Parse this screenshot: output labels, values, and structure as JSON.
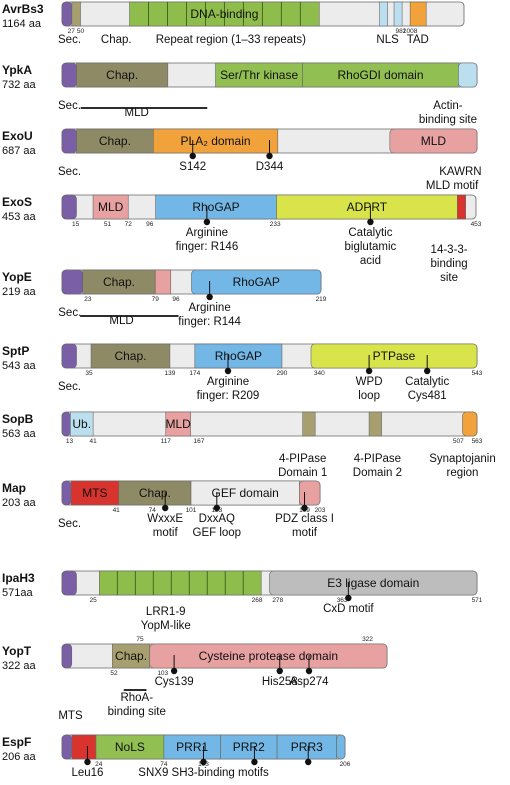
{
  "colors": {
    "body": "#ececec",
    "sec": "#7a5fa6",
    "chap": "#8e8a65",
    "green": "#8fbd4c",
    "stripe": "#7aa83a",
    "kinase": "#92bf51",
    "blue": "#72b7e6",
    "orange": "#f1a23a",
    "pink": "#e7a1a0",
    "yellow": "#d8e44a",
    "lightblue": "#bcdfef",
    "red": "#d8342d",
    "khaki": "#a79f6f",
    "grey": "#bdbdbd"
  },
  "proteins": [
    {
      "name": "AvrBs3",
      "length": "1164 aa",
      "domains": [
        {
          "label": "",
          "color": "sec",
          "s": 0,
          "e": 0.0245
        },
        {
          "label": "",
          "color": "khaki",
          "s": 0.0245,
          "e": 0.046
        },
        {
          "label": "DNA-binding",
          "color": "green",
          "s": 0.168,
          "e": 0.64,
          "stripes": 9
        },
        {
          "label": "",
          "color": "lightblue",
          "s": 0.79,
          "e": 0.81
        },
        {
          "label": "",
          "color": "lightblue",
          "s": 0.826,
          "e": 0.846
        },
        {
          "label": "",
          "color": "orange",
          "s": 0.866,
          "e": 0.906
        }
      ],
      "numbers": [
        {
          "t": "27",
          "p": 0.023
        },
        {
          "t": "50",
          "p": 0.046
        },
        {
          "t": "982",
          "p": 0.843
        },
        {
          "t": "1008",
          "p": 0.866
        }
      ],
      "annotations": [
        {
          "t": "Sec.",
          "x": 0.005,
          "dy": 17
        },
        {
          "t": "Chap.",
          "x": 0.135,
          "dy": 17
        },
        {
          "t": "Repeat region (1–33 repeats)",
          "x": 0.42,
          "dy": 17
        },
        {
          "t": "NLS",
          "x": 0.81,
          "dy": 17
        },
        {
          "t": "TAD",
          "x": 0.885,
          "dy": 17
        }
      ]
    },
    {
      "name": "YpkA",
      "length": "732 aa",
      "domains": [
        {
          "label": "",
          "color": "sec",
          "s": 0,
          "e": 0.035
        },
        {
          "label": "Chap.",
          "color": "chap",
          "s": 0.035,
          "e": 0.255
        },
        {
          "label": "Ser/Thr kinase",
          "color": "kinase",
          "s": 0.37,
          "e": 0.58
        },
        {
          "label": "RhoGDI domain",
          "color": "kinase",
          "s": 0.58,
          "e": 0.955
        },
        {
          "label": "",
          "color": "lightblue",
          "s": 0.955,
          "e": 1
        }
      ],
      "numbers": [],
      "annotations": [
        {
          "t": "Sec.",
          "x": 0.005,
          "dy": 22
        },
        {
          "t": "MLD",
          "x": 0.18,
          "dy": 29
        },
        {
          "t": "Actin-",
          "x": 0.93,
          "dy": 22
        },
        {
          "t": "binding site",
          "x": 0.93,
          "dy": 36
        }
      ],
      "lines": [
        {
          "s": 0.045,
          "e": 0.35,
          "dy": 21
        }
      ]
    },
    {
      "name": "ExoU",
      "length": "687 aa",
      "domains": [
        {
          "label": "",
          "color": "sec",
          "s": 0,
          "e": 0.035
        },
        {
          "label": "Chap.",
          "color": "chap",
          "s": 0.035,
          "e": 0.22
        },
        {
          "label": "PLA₂ domain",
          "color": "orange",
          "s": 0.22,
          "e": 0.52
        },
        {
          "label": "MLD",
          "color": "pink",
          "s": 0.79,
          "e": 1
        }
      ],
      "numbers": [],
      "pins": [
        {
          "p": 0.315,
          "t": "S142"
        },
        {
          "p": 0.5,
          "t": "D344"
        }
      ],
      "annotations": [
        {
          "t": "Sec.",
          "x": 0.005,
          "dy": 22
        },
        {
          "t": "KAWRN",
          "x": 0.96,
          "dy": 22
        },
        {
          "t": "MLD motif",
          "x": 0.94,
          "dy": 36
        }
      ]
    },
    {
      "name": "ExoS",
      "length": "453 aa",
      "domains": [
        {
          "label": "",
          "color": "sec",
          "s": 0,
          "e": 0.035
        },
        {
          "label": "MLD",
          "color": "pink",
          "s": 0.075,
          "e": 0.16
        },
        {
          "label": "RhoGAP",
          "color": "blue",
          "s": 0.226,
          "e": 0.518
        },
        {
          "label": "ADPRT",
          "color": "yellow",
          "s": 0.518,
          "e": 0.955
        },
        {
          "label": "",
          "color": "red",
          "s": 0.955,
          "e": 0.975
        }
      ],
      "numbers": [
        {
          "t": "15",
          "p": 0.033
        },
        {
          "t": "51",
          "p": 0.11
        },
        {
          "t": "72",
          "p": 0.16
        },
        {
          "t": "96",
          "p": 0.212
        },
        {
          "t": "233",
          "p": 0.515
        },
        {
          "t": "453",
          "p": 1.0
        }
      ],
      "pins": [
        {
          "p": 0.35,
          "t": "Arginine",
          "t2": "finger: R146"
        },
        {
          "p": 0.745,
          "t": "Catalytic",
          "t2": "biglutamic",
          "t3": "acid"
        }
      ],
      "annotations": [
        {
          "t": "14-3-3-",
          "x": 0.935,
          "dy": 34
        },
        {
          "t": "binding",
          "x": 0.935,
          "dy": 48
        },
        {
          "t": "site",
          "x": 0.935,
          "dy": 62
        }
      ]
    },
    {
      "name": "YopE",
      "length": "219 aa",
      "domains": [
        {
          "label": "",
          "color": "sec",
          "s": 0,
          "e": 0.08
        },
        {
          "label": "Chap.",
          "color": "chap",
          "s": 0.08,
          "e": 0.36
        },
        {
          "label": "",
          "color": "pink",
          "s": 0.36,
          "e": 0.42
        },
        {
          "label": "RhoGAP",
          "color": "blue",
          "s": 0.5,
          "e": 1
        }
      ],
      "numbers": [
        {
          "t": "23",
          "p": 0.1
        },
        {
          "t": "79",
          "p": 0.36
        },
        {
          "t": "96",
          "p": 0.44
        },
        {
          "t": "219",
          "p": 1.0
        }
      ],
      "pins": [
        {
          "p": 0.57,
          "t": "Arginine",
          "t2": "finger: R144"
        }
      ],
      "annotations": [
        {
          "t": "Sec.",
          "x": 0.03,
          "dy": 22
        },
        {
          "t": "MLD",
          "x": 0.23,
          "dy": 30
        }
      ],
      "lines": [
        {
          "s": 0.07,
          "e": 0.45,
          "dy": 22
        }
      ]
    },
    {
      "name": "SptP",
      "length": "543 aa",
      "domains": [
        {
          "label": "",
          "color": "sec",
          "s": 0,
          "e": 0.035
        },
        {
          "label": "Chap.",
          "color": "chap",
          "s": 0.07,
          "e": 0.26
        },
        {
          "label": "RhoGAP",
          "color": "blue",
          "s": 0.32,
          "e": 0.53
        },
        {
          "label": "PTPase",
          "color": "yellow",
          "s": 0.6,
          "e": 1
        }
      ],
      "numbers": [
        {
          "t": "35",
          "p": 0.065
        },
        {
          "t": "139",
          "p": 0.26
        },
        {
          "t": "174",
          "p": 0.32
        },
        {
          "t": "290",
          "p": 0.53
        },
        {
          "t": "340",
          "p": 0.62
        },
        {
          "t": "543",
          "p": 1.0
        }
      ],
      "pins": [
        {
          "p": 0.4,
          "t": "Arginine",
          "t2": "finger: R209"
        },
        {
          "p": 0.74,
          "t": "WPD",
          "t2": "loop"
        },
        {
          "p": 0.88,
          "t": "Catalytic",
          "t2": "Cys481"
        }
      ],
      "annotations": [
        {
          "t": "Sec.",
          "x": 0.005,
          "dy": 22
        }
      ]
    },
    {
      "name": "SopB",
      "length": "563 aa",
      "domains": [
        {
          "label": "",
          "color": "sec",
          "s": 0,
          "e": 0.02
        },
        {
          "label": "Ub.",
          "color": "lightblue",
          "s": 0.02,
          "e": 0.075
        },
        {
          "label": "MLD",
          "color": "pink",
          "s": 0.25,
          "e": 0.31
        },
        {
          "label": "",
          "color": "khaki",
          "s": 0.58,
          "e": 0.61
        },
        {
          "label": "",
          "color": "khaki",
          "s": 0.74,
          "e": 0.77
        },
        {
          "label": "",
          "color": "orange",
          "s": 0.965,
          "e": 1
        }
      ],
      "numbers": [
        {
          "t": "13",
          "p": 0.018
        },
        {
          "t": "41",
          "p": 0.075
        },
        {
          "t": "117",
          "p": 0.25
        },
        {
          "t": "167",
          "p": 0.33
        },
        {
          "t": "507",
          "p": 0.955
        },
        {
          "t": "563",
          "p": 1.0
        }
      ],
      "annotations": [
        {
          "t": "4-PIPase",
          "x": 0.58,
          "dy": 26
        },
        {
          "t": "Domain 1",
          "x": 0.58,
          "dy": 40
        },
        {
          "t": "4-PIPase",
          "x": 0.76,
          "dy": 26
        },
        {
          "t": "Domain 2",
          "x": 0.76,
          "dy": 40
        },
        {
          "t": "Synaptojanin",
          "x": 0.965,
          "dy": 26
        },
        {
          "t": "region",
          "x": 0.965,
          "dy": 40
        }
      ]
    },
    {
      "name": "Map",
      "length": "203 aa",
      "domains": [
        {
          "label": "",
          "color": "sec",
          "s": 0,
          "e": 0.035
        },
        {
          "label": "MTS",
          "color": "red",
          "s": 0.035,
          "e": 0.22
        },
        {
          "label": "Chap.",
          "color": "chap",
          "s": 0.22,
          "e": 0.5
        },
        {
          "label": "GEF domain",
          "color": "body",
          "s": 0.5,
          "e": 0.92
        },
        {
          "label": "",
          "color": "pink",
          "s": 0.92,
          "e": 1
        }
      ],
      "numbers": [
        {
          "t": "41",
          "p": 0.21
        },
        {
          "t": "74",
          "p": 0.35
        },
        {
          "t": "101",
          "p": 0.5
        },
        {
          "t": "123",
          "p": 0.6
        },
        {
          "t": "199",
          "p": 0.94
        },
        {
          "t": "203",
          "p": 1.0
        }
      ],
      "pins": [
        {
          "p": 0.4,
          "t": "WxxxE",
          "t2": "motif"
        },
        {
          "p": 0.6,
          "t": "DxxAQ",
          "t2": "GEF loop"
        },
        {
          "p": 0.94,
          "t": "PDZ class I",
          "t2": "motif"
        }
      ],
      "annotations": [
        {
          "t": "Sec.",
          "x": 0.005,
          "dy": 22
        }
      ]
    },
    {
      "name": "IpaH3",
      "length": "571aa",
      "domains": [
        {
          "label": "",
          "color": "sec",
          "s": 0,
          "e": 0.035
        },
        {
          "label": "",
          "color": "green",
          "s": 0.09,
          "e": 0.48,
          "stripes": 8
        },
        {
          "label": "E3 ligase domain",
          "color": "grey",
          "s": 0.5,
          "e": 1
        }
      ],
      "numbers": [
        {
          "t": "25",
          "p": 0.075
        },
        {
          "t": "268",
          "p": 0.47
        },
        {
          "t": "278",
          "p": 0.52
        },
        {
          "t": "363",
          "p": 0.675
        },
        {
          "t": "571",
          "p": 1.0
        }
      ],
      "pins": [
        {
          "p": 0.69,
          "t": "CxD motif"
        }
      ],
      "annotations": [
        {
          "t": "LRR1-9",
          "x": 0.25,
          "dy": 20
        },
        {
          "t": "YopM-like",
          "x": 0.25,
          "dy": 34
        }
      ]
    },
    {
      "name": "YopT",
      "length": "322 aa",
      "domains": [
        {
          "label": "",
          "color": "sec",
          "s": 0,
          "e": 0.03
        },
        {
          "label": "Chap.",
          "color": "khaki",
          "s": 0.155,
          "e": 0.27
        },
        {
          "label": "Cysteine protease domain",
          "color": "pink",
          "s": 0.27,
          "e": 1
        }
      ],
      "numbers": [
        {
          "t": "52",
          "p": 0.16
        },
        {
          "t": "103",
          "p": 0.31
        },
        {
          "t": "75",
          "p": 0.24,
          "above": true
        },
        {
          "t": "322",
          "p": 0.94,
          "above": true
        }
      ],
      "pins": [
        {
          "p": 0.345,
          "t": "Cys139"
        },
        {
          "p": 0.67,
          "t": "His258"
        },
        {
          "p": 0.76,
          "t": "Asp274"
        }
      ],
      "annotations": [
        {
          "t": "RhoA-",
          "x": 0.23,
          "dy": 33
        },
        {
          "t": "binding site",
          "x": 0.23,
          "dy": 47
        }
      ],
      "lines": [
        {
          "s": 0.19,
          "e": 0.26,
          "dy": 22
        }
      ]
    },
    {
      "name": "EspF",
      "length": "206 aa",
      "domains": [
        {
          "label": "",
          "color": "sec",
          "s": 0,
          "e": 0.035
        },
        {
          "label": "",
          "color": "red",
          "s": 0.035,
          "e": 0.12
        },
        {
          "label": "NoLS",
          "color": "kinase",
          "s": 0.12,
          "e": 0.36
        },
        {
          "label": "PRR1",
          "color": "blue",
          "s": 0.36,
          "e": 0.56
        },
        {
          "label": "PRR2",
          "color": "blue",
          "s": 0.56,
          "e": 0.76
        },
        {
          "label": "PRR3",
          "color": "blue",
          "s": 0.76,
          "e": 0.97
        },
        {
          "label": "",
          "color": "blue",
          "s": 0.97,
          "e": 1
        }
      ],
      "numbers": [
        {
          "t": "24",
          "p": 0.13
        },
        {
          "t": "74",
          "p": 0.36
        },
        {
          "t": "103",
          "p": 0.5
        },
        {
          "t": "206",
          "p": 1.0
        }
      ],
      "pins": [
        {
          "p": 0.09,
          "t": "Leu16"
        },
        {
          "p": 0.5,
          "t": "SNX9 SH3-binding motifs",
          "gap": true
        },
        {
          "p": 0.68,
          "t": ""
        },
        {
          "p": 0.87,
          "t": ""
        }
      ],
      "annotations": [
        {
          "t": "MTS",
          "x": 0.03,
          "dy": -26
        }
      ]
    }
  ]
}
